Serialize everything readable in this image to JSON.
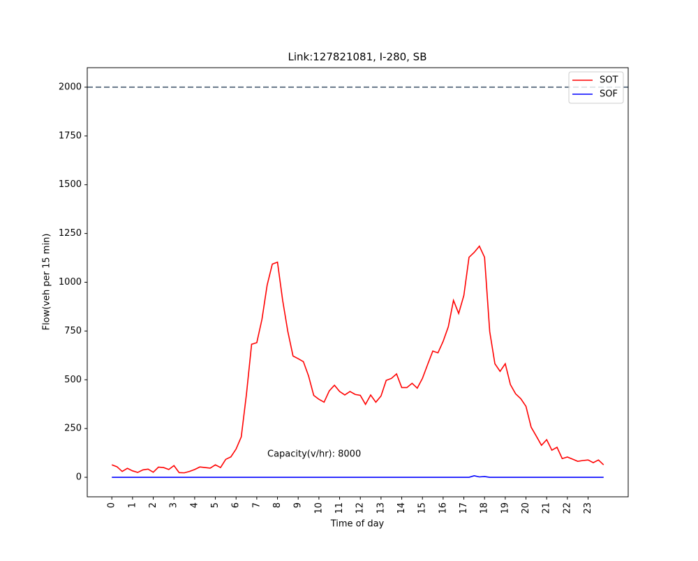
{
  "chart_data": {
    "type": "line",
    "title": "Link:127821081, I-280, SB",
    "xlabel": "Time of day",
    "ylabel": "Flow(veh per 15 min)",
    "annotation": "Capacity(v/hr): 8000",
    "x": [
      0,
      0.25,
      0.5,
      0.75,
      1,
      1.25,
      1.5,
      1.75,
      2,
      2.25,
      2.5,
      2.75,
      3,
      3.25,
      3.5,
      3.75,
      4,
      4.25,
      4.5,
      4.75,
      5,
      5.25,
      5.5,
      5.75,
      6,
      6.25,
      6.5,
      6.75,
      7,
      7.25,
      7.5,
      7.75,
      8,
      8.25,
      8.5,
      8.75,
      9,
      9.25,
      9.5,
      9.75,
      10,
      10.25,
      10.5,
      10.75,
      11,
      11.25,
      11.5,
      11.75,
      12,
      12.25,
      12.5,
      12.75,
      13,
      13.25,
      13.5,
      13.75,
      14,
      14.25,
      14.5,
      14.75,
      15,
      15.25,
      15.5,
      15.75,
      16,
      16.25,
      16.5,
      16.75,
      17,
      17.25,
      17.5,
      17.75,
      18,
      18.25,
      18.5,
      18.75,
      19,
      19.25,
      19.5,
      19.75,
      20,
      20.25,
      20.5,
      20.75,
      21,
      21.25,
      21.5,
      21.75,
      22,
      22.25,
      22.5,
      22.75,
      23,
      23.25,
      23.5,
      23.75
    ],
    "series": [
      {
        "name": "SOT",
        "color": "#ff0000",
        "values": [
          64,
          54,
          30,
          46,
          33,
          25,
          38,
          42,
          26,
          52,
          50,
          40,
          60,
          24,
          23,
          30,
          40,
          53,
          50,
          47,
          64,
          50,
          92,
          105,
          145,
          207,
          425,
          682,
          690,
          810,
          985,
          1093,
          1103,
          907,
          747,
          622,
          608,
          593,
          520,
          420,
          400,
          385,
          443,
          472,
          440,
          422,
          440,
          425,
          420,
          374,
          422,
          385,
          417,
          497,
          507,
          530,
          460,
          460,
          482,
          457,
          507,
          578,
          647,
          638,
          697,
          772,
          907,
          840,
          932,
          1128,
          1153,
          1185,
          1128,
          747,
          582,
          543,
          582,
          475,
          428,
          403,
          364,
          257,
          211,
          164,
          193,
          139,
          154,
          96,
          104,
          93,
          82,
          86,
          89,
          75,
          89,
          64
        ]
      },
      {
        "name": "SOF",
        "color": "#0000ff",
        "values": [
          0,
          0,
          0,
          0,
          0,
          0,
          0,
          0,
          0,
          0,
          0,
          0,
          0,
          0,
          0,
          0,
          0,
          0,
          0,
          0,
          0,
          0,
          0,
          0,
          0,
          0,
          0,
          0,
          0,
          0,
          0,
          0,
          0,
          0,
          0,
          0,
          0,
          0,
          0,
          0,
          0,
          0,
          0,
          0,
          0,
          0,
          0,
          0,
          0,
          0,
          0,
          0,
          0,
          0,
          0,
          0,
          0,
          0,
          0,
          0,
          0,
          0,
          0,
          0,
          0,
          0,
          0,
          0,
          0,
          0,
          8,
          2,
          4,
          0,
          0,
          0,
          0,
          0,
          0,
          0,
          0,
          0,
          0,
          0,
          0,
          0,
          0,
          0,
          0,
          0,
          0,
          0,
          0,
          0,
          0,
          0
        ]
      }
    ],
    "hline": {
      "y": 2000,
      "color": "#708090"
    },
    "xlim": [
      -1.1875,
      24.9375
    ],
    "ylim": [
      -100,
      2100
    ],
    "xticks": [
      0,
      1,
      2,
      3,
      4,
      5,
      6,
      7,
      8,
      9,
      10,
      11,
      12,
      13,
      14,
      15,
      16,
      17,
      18,
      19,
      20,
      21,
      22,
      23
    ],
    "yticks": [
      0,
      250,
      500,
      750,
      1000,
      1250,
      1500,
      1750,
      2000
    ],
    "legend": "upper right"
  }
}
